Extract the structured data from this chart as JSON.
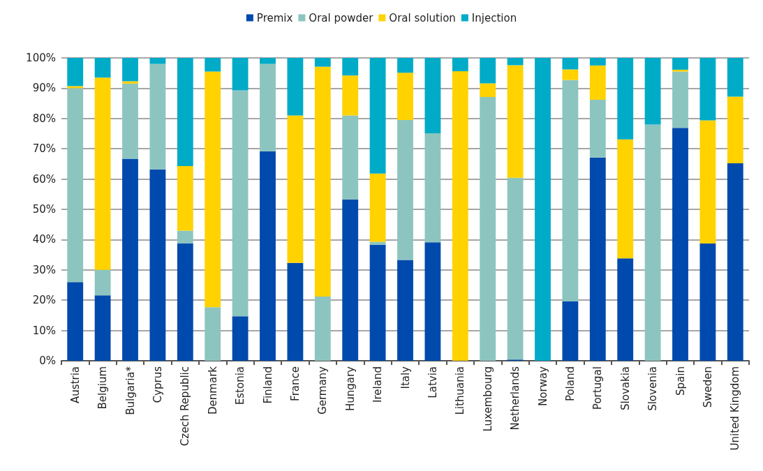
{
  "chart_data": {
    "type": "bar",
    "stacked": true,
    "legend": "top",
    "grid": "y",
    "categories": [
      "Austria",
      "Belgium",
      "Bulgaria*",
      "Cyprus",
      "Czech Republic",
      "Denmark",
      "Estonia",
      "Finland",
      "France",
      "Germany",
      "Hungary",
      "Ireland",
      "Italy",
      "Latvia",
      "Lithuania",
      "Luxembourg",
      "Netherlands",
      "Norway",
      "Poland",
      "Portugal",
      "Slovakia",
      "Slovenia",
      "Spain",
      "Sweden",
      "United Kingdom"
    ],
    "ylim": [
      0,
      100
    ],
    "yticks": [
      {
        "value": 0,
        "label": "0%"
      },
      {
        "value": 10,
        "label": "10%"
      },
      {
        "value": 20,
        "label": "20%"
      },
      {
        "value": 30,
        "label": "30%"
      },
      {
        "value": 40,
        "label": "40%"
      },
      {
        "value": 50,
        "label": "50%"
      },
      {
        "value": 60,
        "label": "60%"
      },
      {
        "value": 70,
        "label": "70%"
      },
      {
        "value": 80,
        "label": "80%"
      },
      {
        "value": 90,
        "label": "90%"
      },
      {
        "value": 100,
        "label": "100%"
      }
    ],
    "series": [
      {
        "name": "Premix",
        "color": "#004aad",
        "values": [
          26,
          21.6,
          66.7,
          63.2,
          38.7,
          0,
          14.7,
          69.2,
          32.3,
          0,
          53.3,
          38.3,
          33.3,
          39.1,
          0,
          0,
          0.4,
          0,
          19.6,
          67.1,
          33.8,
          0,
          76.9,
          38.7,
          65.2
        ]
      },
      {
        "name": "Oral powder",
        "color": "#8cc5bf",
        "values": [
          64,
          8.4,
          24.8,
          34.8,
          4.3,
          17.7,
          74.6,
          28.8,
          0,
          21.2,
          27.7,
          1,
          46.2,
          36,
          0,
          87.1,
          60,
          0,
          73.1,
          19.1,
          0,
          78,
          18.6,
          0,
          0
        ]
      },
      {
        "name": "Oral solution",
        "color": "#ffd200",
        "values": [
          0.7,
          63.5,
          0.8,
          0,
          21.3,
          77.8,
          0,
          0,
          48.7,
          75.9,
          13.2,
          22.5,
          15.6,
          0,
          95.6,
          4.5,
          37.2,
          0,
          3.5,
          11.3,
          39.3,
          0,
          0.6,
          40.7,
          22
        ]
      },
      {
        "name": "Injection",
        "color": "#00abc8",
        "values": [
          9.3,
          6.5,
          7.7,
          2,
          35.7,
          4.5,
          10.7,
          2,
          19,
          2.9,
          5.8,
          38.2,
          4.9,
          24.9,
          4.4,
          8.4,
          2.4,
          100,
          3.8,
          2.5,
          26.9,
          22,
          3.9,
          20.6,
          12.8
        ]
      }
    ]
  }
}
